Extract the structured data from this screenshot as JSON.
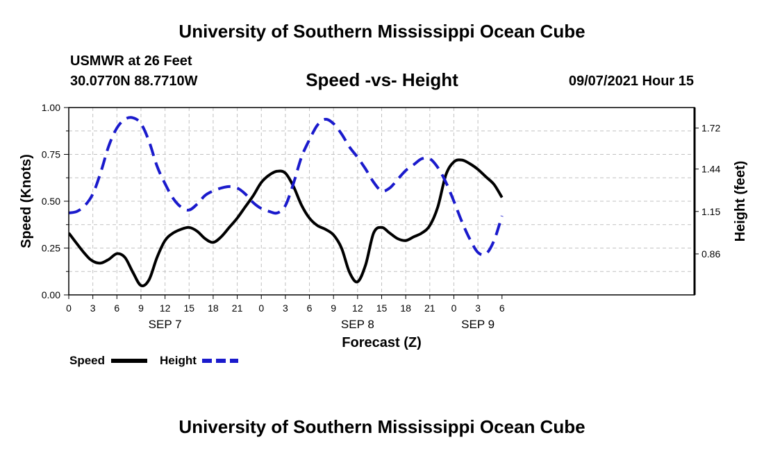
{
  "header": {
    "title": "University of Southern Mississippi Ocean Cube",
    "station": "USMWR at 26 Feet",
    "coordinates": "30.0770N  88.7710W",
    "chart_title": "Speed -vs- Height",
    "datetime": "09/07/2021 Hour 15"
  },
  "footer": {
    "title": "University of Southern Mississippi Ocean Cube"
  },
  "colors": {
    "speed": "#000000",
    "height": "#1a1acc",
    "grid": "#c0c0c0"
  },
  "chart_data": {
    "type": "line",
    "title": "Speed -vs- Height",
    "xlabel": "Forecast (Z)",
    "ylabel": "Speed (Knots)",
    "y2label": "Height (feet)",
    "x_unit": "hours since SEP 7 00Z",
    "xlim": [
      -24,
      54
    ],
    "ylim": [
      0,
      1
    ],
    "y2lim": [
      0.58,
      1.86
    ],
    "grid": true,
    "x_ticks": [
      {
        "x": -24,
        "label": "0"
      },
      {
        "x": -21,
        "label": "3"
      },
      {
        "x": -18,
        "label": "6"
      },
      {
        "x": -15,
        "label": "9"
      },
      {
        "x": -12,
        "label": "12"
      },
      {
        "x": -9,
        "label": "15"
      },
      {
        "x": -6,
        "label": "18"
      },
      {
        "x": -3,
        "label": "21"
      },
      {
        "x": 0,
        "label": "0"
      },
      {
        "x": 3,
        "label": "3"
      },
      {
        "x": 6,
        "label": "6"
      },
      {
        "x": 9,
        "label": "9"
      },
      {
        "x": 12,
        "label": "12"
      },
      {
        "x": 15,
        "label": "15"
      },
      {
        "x": 18,
        "label": "18"
      },
      {
        "x": 21,
        "label": "21"
      },
      {
        "x": 24,
        "label": "0"
      },
      {
        "x": 27,
        "label": "3"
      },
      {
        "x": 30,
        "label": "6"
      }
    ],
    "date_labels": [
      {
        "x": -12,
        "label": "SEP 7"
      },
      {
        "x": 12,
        "label": "SEP 8"
      },
      {
        "x": 27,
        "label": "SEP 9"
      }
    ],
    "y_ticks": [
      "0.00",
      "0.25",
      "0.50",
      "0.75",
      "1.00"
    ],
    "y2_ticks": [
      0.86,
      1.15,
      1.44,
      1.72
    ],
    "series": [
      {
        "name": "Speed",
        "axis": "left",
        "style": "solid",
        "x": [
          -24,
          -22,
          -21,
          -20,
          -19,
          -18,
          -17,
          -16,
          -15,
          -14,
          -13,
          -12,
          -11,
          -10,
          -9,
          -8,
          -7,
          -6,
          -5,
          -4,
          -3,
          -2,
          -1,
          0,
          1,
          2,
          3,
          4,
          5,
          6,
          7,
          8,
          9,
          10,
          11,
          12,
          13,
          14,
          15,
          16,
          17,
          18,
          19,
          20,
          21,
          22,
          23,
          24,
          25,
          26,
          27,
          28,
          29,
          30
        ],
        "values": [
          0.33,
          0.22,
          0.18,
          0.17,
          0.19,
          0.22,
          0.2,
          0.12,
          0.05,
          0.08,
          0.2,
          0.29,
          0.33,
          0.35,
          0.36,
          0.34,
          0.3,
          0.28,
          0.31,
          0.36,
          0.41,
          0.47,
          0.53,
          0.6,
          0.64,
          0.66,
          0.65,
          0.58,
          0.48,
          0.41,
          0.37,
          0.35,
          0.32,
          0.25,
          0.12,
          0.07,
          0.16,
          0.33,
          0.36,
          0.33,
          0.3,
          0.29,
          0.31,
          0.33,
          0.37,
          0.47,
          0.64,
          0.71,
          0.72,
          0.7,
          0.67,
          0.63,
          0.59,
          0.52
        ]
      },
      {
        "name": "Height",
        "axis": "right",
        "style": "dashed",
        "x": [
          -24,
          -23,
          -22,
          -21,
          -20,
          -19,
          -18,
          -17,
          -16,
          -15,
          -14,
          -13,
          -12,
          -11,
          -10,
          -9,
          -8,
          -7,
          -6,
          -5,
          -4,
          -3,
          -2,
          -1,
          0,
          1,
          2,
          3,
          4,
          5,
          6,
          7,
          8,
          9,
          10,
          11,
          12,
          13,
          14,
          15,
          16,
          17,
          18,
          19,
          20,
          21,
          22,
          23,
          24,
          25,
          26,
          27,
          28,
          29,
          30
        ],
        "values": [
          1.14,
          1.15,
          1.19,
          1.27,
          1.42,
          1.6,
          1.72,
          1.78,
          1.79,
          1.75,
          1.63,
          1.46,
          1.34,
          1.24,
          1.18,
          1.16,
          1.2,
          1.26,
          1.29,
          1.31,
          1.32,
          1.31,
          1.27,
          1.21,
          1.17,
          1.15,
          1.14,
          1.19,
          1.34,
          1.52,
          1.64,
          1.74,
          1.78,
          1.75,
          1.68,
          1.59,
          1.52,
          1.44,
          1.35,
          1.29,
          1.31,
          1.37,
          1.43,
          1.47,
          1.51,
          1.51,
          1.45,
          1.35,
          1.22,
          1.08,
          0.96,
          0.87,
          0.86,
          0.95,
          1.12
        ]
      }
    ],
    "legend": [
      {
        "label": "Speed",
        "style": "solid"
      },
      {
        "label": "Height",
        "style": "dashed"
      }
    ],
    "legend_position": "bottom-left"
  }
}
